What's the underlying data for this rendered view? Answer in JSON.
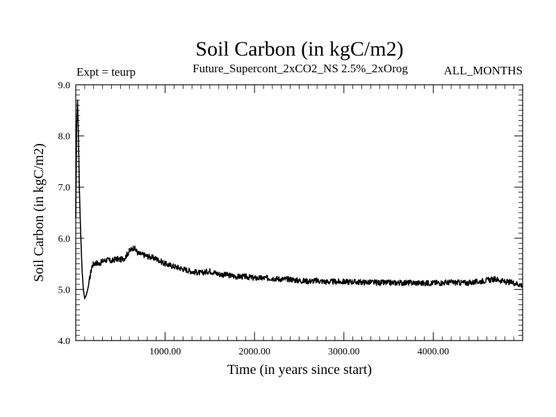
{
  "chart_data": {
    "type": "line",
    "title": "Soil Carbon (in kgC/m2)",
    "subtitle_left": "Expt = teurp",
    "subtitle_center": "Future_Supercont_2xCO2_NS 2.5%_2xOrog",
    "subtitle_right": "ALL_MONTHS",
    "xlabel": "Time (in years since start)",
    "ylabel": "Soil Carbon (in kgC/m2)",
    "xlim": [
      0,
      5000
    ],
    "ylim": [
      4.0,
      9.0
    ],
    "xticks": [
      1000,
      2000,
      3000,
      4000
    ],
    "xtick_labels": [
      "1000.00",
      "2000.00",
      "3000.00",
      "4000.00"
    ],
    "yticks": [
      4.0,
      5.0,
      6.0,
      7.0,
      8.0,
      9.0
    ],
    "ytick_labels": [
      "4.0",
      "5.0",
      "6.0",
      "7.0",
      "8.0",
      "9.0"
    ],
    "grid": false,
    "series": [
      {
        "color": "#000000",
        "x": [
          0,
          10,
          20,
          30,
          40,
          55,
          70,
          85,
          100,
          120,
          140,
          160,
          180,
          200,
          230,
          260,
          300,
          350,
          400,
          450,
          500,
          550,
          600,
          650,
          700,
          750,
          800,
          900,
          1000,
          1100,
          1200,
          1300,
          1400,
          1500,
          1600,
          1700,
          1800,
          1900,
          2000,
          2100,
          2200,
          2300,
          2400,
          2500,
          2600,
          2700,
          2800,
          2900,
          3000,
          3100,
          3200,
          3300,
          3400,
          3500,
          3600,
          3700,
          3800,
          3900,
          4000,
          4100,
          4200,
          4300,
          4400,
          4500,
          4600,
          4700,
          4800,
          4900,
          5000
        ],
        "values": [
          6.4,
          8.2,
          8.7,
          8.0,
          7.0,
          6.1,
          5.4,
          5.0,
          4.82,
          4.9,
          5.05,
          5.25,
          5.45,
          5.5,
          5.52,
          5.5,
          5.55,
          5.58,
          5.55,
          5.6,
          5.58,
          5.62,
          5.75,
          5.82,
          5.7,
          5.68,
          5.65,
          5.6,
          5.5,
          5.45,
          5.4,
          5.35,
          5.32,
          5.36,
          5.3,
          5.28,
          5.25,
          5.25,
          5.22,
          5.22,
          5.22,
          5.2,
          5.2,
          5.17,
          5.16,
          5.17,
          5.15,
          5.15,
          5.15,
          5.15,
          5.14,
          5.14,
          5.13,
          5.13,
          5.13,
          5.13,
          5.13,
          5.12,
          5.13,
          5.13,
          5.14,
          5.13,
          5.13,
          5.15,
          5.18,
          5.2,
          5.15,
          5.13,
          5.08
        ]
      }
    ]
  }
}
